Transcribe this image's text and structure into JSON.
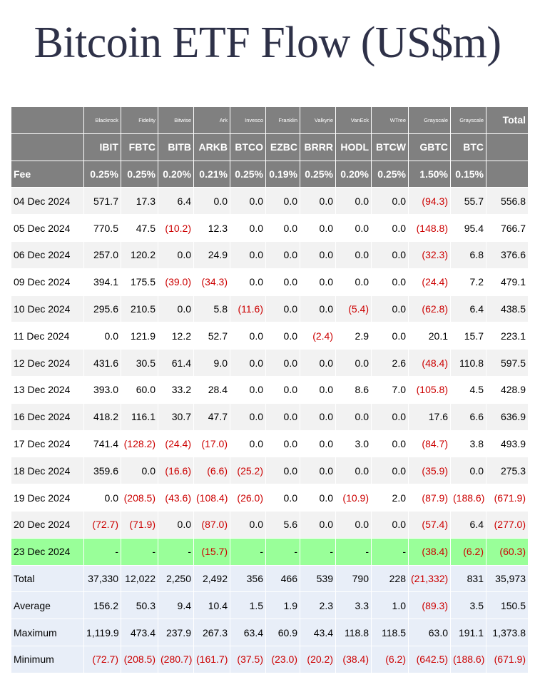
{
  "title": "Bitcoin ETF Flow (US$m)",
  "colors": {
    "header_bg": "#808080",
    "negative": "#cc0000",
    "highlight_row": "#99ff99",
    "summary_bg": "#e8eef8"
  },
  "header": {
    "issuers": [
      "",
      "Blackrock",
      "Fidelity",
      "Bitwise",
      "Ark",
      "Invesco",
      "Franklin",
      "Valkyrie",
      "VanEck",
      "WTree",
      "Grayscale",
      "Grayscale",
      "Total"
    ],
    "tickers": [
      "",
      "IBIT",
      "FBTC",
      "BITB",
      "ARKB",
      "BTCO",
      "EZBC",
      "BRRR",
      "HODL",
      "BTCW",
      "GBTC",
      "BTC",
      ""
    ],
    "fees": [
      "Fee",
      "0.25%",
      "0.25%",
      "0.20%",
      "0.21%",
      "0.25%",
      "0.19%",
      "0.25%",
      "0.20%",
      "0.25%",
      "1.50%",
      "0.15%",
      ""
    ]
  },
  "rows": [
    {
      "date": "04 Dec 2024",
      "values": [
        "571.7",
        "17.3",
        "6.4",
        "0.0",
        "0.0",
        "0.0",
        "0.0",
        "0.0",
        "0.0",
        "(94.3)",
        "55.7",
        "556.8"
      ]
    },
    {
      "date": "05 Dec 2024",
      "values": [
        "770.5",
        "47.5",
        "(10.2)",
        "12.3",
        "0.0",
        "0.0",
        "0.0",
        "0.0",
        "0.0",
        "(148.8)",
        "95.4",
        "766.7"
      ]
    },
    {
      "date": "06 Dec 2024",
      "values": [
        "257.0",
        "120.2",
        "0.0",
        "24.9",
        "0.0",
        "0.0",
        "0.0",
        "0.0",
        "0.0",
        "(32.3)",
        "6.8",
        "376.6"
      ]
    },
    {
      "date": "09 Dec 2024",
      "values": [
        "394.1",
        "175.5",
        "(39.0)",
        "(34.3)",
        "0.0",
        "0.0",
        "0.0",
        "0.0",
        "0.0",
        "(24.4)",
        "7.2",
        "479.1"
      ]
    },
    {
      "date": "10 Dec 2024",
      "values": [
        "295.6",
        "210.5",
        "0.0",
        "5.8",
        "(11.6)",
        "0.0",
        "0.0",
        "(5.4)",
        "0.0",
        "(62.8)",
        "6.4",
        "438.5"
      ]
    },
    {
      "date": "11 Dec 2024",
      "values": [
        "0.0",
        "121.9",
        "12.2",
        "52.7",
        "0.0",
        "0.0",
        "(2.4)",
        "2.9",
        "0.0",
        "20.1",
        "15.7",
        "223.1"
      ]
    },
    {
      "date": "12 Dec 2024",
      "values": [
        "431.6",
        "30.5",
        "61.4",
        "9.0",
        "0.0",
        "0.0",
        "0.0",
        "0.0",
        "2.6",
        "(48.4)",
        "110.8",
        "597.5"
      ]
    },
    {
      "date": "13 Dec 2024",
      "values": [
        "393.0",
        "60.0",
        "33.2",
        "28.4",
        "0.0",
        "0.0",
        "0.0",
        "8.6",
        "7.0",
        "(105.8)",
        "4.5",
        "428.9"
      ]
    },
    {
      "date": "16 Dec 2024",
      "values": [
        "418.2",
        "116.1",
        "30.7",
        "47.7",
        "0.0",
        "0.0",
        "0.0",
        "0.0",
        "0.0",
        "17.6",
        "6.6",
        "636.9"
      ]
    },
    {
      "date": "17 Dec 2024",
      "values": [
        "741.4",
        "(128.2)",
        "(24.4)",
        "(17.0)",
        "0.0",
        "0.0",
        "0.0",
        "3.0",
        "0.0",
        "(84.7)",
        "3.8",
        "493.9"
      ]
    },
    {
      "date": "18 Dec 2024",
      "values": [
        "359.6",
        "0.0",
        "(16.6)",
        "(6.6)",
        "(25.2)",
        "0.0",
        "0.0",
        "0.0",
        "0.0",
        "(35.9)",
        "0.0",
        "275.3"
      ]
    },
    {
      "date": "19 Dec 2024",
      "values": [
        "0.0",
        "(208.5)",
        "(43.6)",
        "(108.4)",
        "(26.0)",
        "0.0",
        "0.0",
        "(10.9)",
        "2.0",
        "(87.9)",
        "(188.6)",
        "(671.9)"
      ]
    },
    {
      "date": "20 Dec 2024",
      "values": [
        "(72.7)",
        "(71.9)",
        "0.0",
        "(87.0)",
        "0.0",
        "5.6",
        "0.0",
        "0.0",
        "0.0",
        "(57.4)",
        "6.4",
        "(277.0)"
      ]
    },
    {
      "date": "23 Dec 2024",
      "highlight": true,
      "values": [
        "-",
        "-",
        "-",
        "(15.7)",
        "-",
        "-",
        "-",
        "-",
        "-",
        "(38.4)",
        "(6.2)",
        "(60.3)"
      ]
    }
  ],
  "summary": [
    {
      "label": "Total",
      "values": [
        "37,330",
        "12,022",
        "2,250",
        "2,492",
        "356",
        "466",
        "539",
        "790",
        "228",
        "(21,332)",
        "831",
        "35,973"
      ]
    },
    {
      "label": "Average",
      "values": [
        "156.2",
        "50.3",
        "9.4",
        "10.4",
        "1.5",
        "1.9",
        "2.3",
        "3.3",
        "1.0",
        "(89.3)",
        "3.5",
        "150.5"
      ]
    },
    {
      "label": "Maximum",
      "values": [
        "1,119.9",
        "473.4",
        "237.9",
        "267.3",
        "63.4",
        "60.9",
        "43.4",
        "118.8",
        "118.5",
        "63.0",
        "191.1",
        "1,373.8"
      ]
    },
    {
      "label": "Minimum",
      "values": [
        "(72.7)",
        "(208.5)",
        "(280.7)",
        "(161.7)",
        "(37.5)",
        "(23.0)",
        "(20.2)",
        "(38.4)",
        "(6.2)",
        "(642.5)",
        "(188.6)",
        "(671.9)"
      ]
    }
  ]
}
